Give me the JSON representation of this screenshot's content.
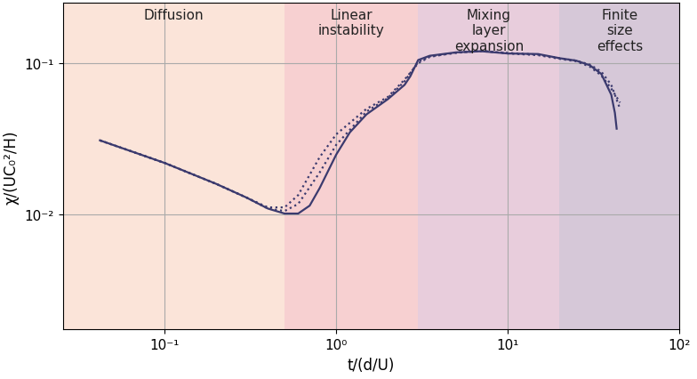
{
  "chart_data": {
    "type": "line",
    "x_label": "t/(d/U)",
    "y_label": "χ/(UC₀²/H)",
    "log": true,
    "grid": true,
    "xlim": [
      0.0255,
      100
    ],
    "ylim": [
      0.00175,
      0.25
    ],
    "xticks": [
      {
        "value": 0.1,
        "label": "10⁻¹"
      },
      {
        "value": 1,
        "label": "10⁰"
      },
      {
        "value": 10,
        "label": "10¹"
      },
      {
        "value": 100,
        "label": "10²"
      }
    ],
    "yticks": [
      {
        "value": 0.01,
        "label": "10⁻²"
      },
      {
        "value": 0.1,
        "label": "10⁻¹"
      }
    ],
    "regions": [
      {
        "label": "Diffusion",
        "start": 0.0255,
        "end": 0.5,
        "color": "#fbe4d9"
      },
      {
        "label": "Linear\ninstability",
        "start": 0.5,
        "end": 3,
        "color": "#f7d0d1"
      },
      {
        "label": "Mixing\nlayer\nexpansion",
        "start": 3,
        "end": 20,
        "color": "#e8cddc"
      },
      {
        "label": "Finite\nsize\neffects",
        "start": 20,
        "end": 100,
        "color": "#d6c8d8"
      }
    ],
    "series": [
      {
        "color": "#3b3a6e",
        "line_style": "solid",
        "x": [
          0.042,
          0.1,
          0.2,
          0.3,
          0.4,
          0.5,
          0.6,
          0.7,
          0.8,
          1.0,
          1.2,
          1.5,
          2.0,
          2.5,
          2.7,
          3.0,
          3.5,
          5,
          7,
          10,
          15,
          20,
          25,
          30,
          35,
          40,
          42,
          43
        ],
        "values": [
          0.031,
          0.022,
          0.016,
          0.013,
          0.011,
          0.0102,
          0.0102,
          0.0115,
          0.015,
          0.025,
          0.035,
          0.046,
          0.058,
          0.072,
          0.082,
          0.105,
          0.112,
          0.118,
          0.12,
          0.116,
          0.115,
          0.108,
          0.104,
          0.097,
          0.085,
          0.062,
          0.047,
          0.037
        ]
      },
      {
        "color": "#3b3a6e",
        "line_style": "dotted",
        "x": [
          0.042,
          0.1,
          0.2,
          0.3,
          0.4,
          0.5,
          0.6,
          0.8,
          1.0,
          1.5,
          2.0,
          2.5,
          3.0,
          3.5,
          5,
          7,
          10,
          15,
          20,
          25,
          30,
          35,
          40,
          45
        ],
        "values": [
          0.031,
          0.022,
          0.016,
          0.013,
          0.0112,
          0.0112,
          0.0135,
          0.024,
          0.034,
          0.05,
          0.06,
          0.078,
          0.1,
          0.11,
          0.118,
          0.12,
          0.117,
          0.114,
          0.108,
          0.104,
          0.098,
          0.088,
          0.072,
          0.05
        ]
      },
      {
        "color": "#3b3a6e",
        "line_style": "dotted",
        "x": [
          0.042,
          0.1,
          0.2,
          0.3,
          0.4,
          0.5,
          0.6,
          0.8,
          1.0,
          1.5,
          2.0,
          2.5,
          3.0,
          3.5,
          5,
          7,
          10,
          15,
          20,
          25,
          30,
          35,
          40,
          45
        ],
        "values": [
          0.031,
          0.022,
          0.016,
          0.013,
          0.011,
          0.0106,
          0.0118,
          0.019,
          0.029,
          0.048,
          0.059,
          0.076,
          0.102,
          0.111,
          0.117,
          0.121,
          0.116,
          0.113,
          0.107,
          0.103,
          0.095,
          0.083,
          0.068,
          0.055
        ]
      }
    ]
  }
}
